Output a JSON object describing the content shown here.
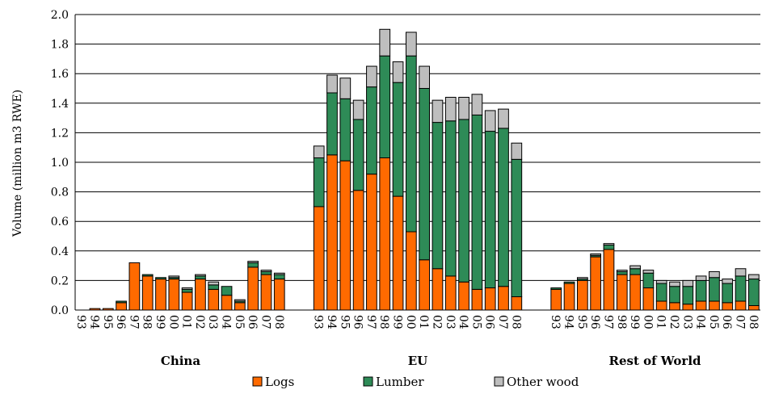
{
  "chart_data": {
    "type": "bar",
    "stacked": true,
    "title": "",
    "ylabel": "Volume (million m3 RWE)",
    "xlabel": "",
    "ylim": [
      0,
      2.0
    ],
    "yticks": [
      "0.0",
      "0.2",
      "0.4",
      "0.6",
      "0.8",
      "1.0",
      "1.2",
      "1.4",
      "1.6",
      "1.8",
      "2.0"
    ],
    "grid": true,
    "legend_position": "bottom",
    "colors": {
      "Logs": "#FF6A00",
      "Lumber": "#2E8B57",
      "Other wood": "#BEBEBE"
    },
    "series_names": [
      "Logs",
      "Lumber",
      "Other wood"
    ],
    "groups": [
      {
        "name": "China",
        "categories": [
          "93",
          "94",
          "95",
          "96",
          "97",
          "98",
          "99",
          "00",
          "01",
          "02",
          "03",
          "04",
          "05",
          "06",
          "07",
          "08"
        ],
        "series": [
          {
            "name": "Logs",
            "values": [
              0,
              0.01,
              0.01,
              0.05,
              0.32,
              0.23,
              0.21,
              0.21,
              0.12,
              0.21,
              0.14,
              0.1,
              0.05,
              0.29,
              0.24,
              0.21
            ]
          },
          {
            "name": "Lumber",
            "values": [
              0,
              0,
              0,
              0.01,
              0,
              0.01,
              0.01,
              0.01,
              0.02,
              0.02,
              0.03,
              0.06,
              0.01,
              0.03,
              0.02,
              0.03
            ]
          },
          {
            "name": "Other wood",
            "values": [
              0,
              0,
              0,
              0,
              0,
              0,
              0,
              0.01,
              0.01,
              0.01,
              0.02,
              0,
              0.01,
              0.01,
              0.01,
              0.01
            ]
          }
        ]
      },
      {
        "name": "EU",
        "categories": [
          "93",
          "94",
          "95",
          "96",
          "97",
          "98",
          "99",
          "00",
          "01",
          "02",
          "03",
          "04",
          "05",
          "06",
          "07",
          "08"
        ],
        "series": [
          {
            "name": "Logs",
            "values": [
              0.7,
              1.05,
              1.01,
              0.81,
              0.92,
              1.03,
              0.77,
              0.53,
              0.34,
              0.28,
              0.23,
              0.19,
              0.14,
              0.15,
              0.16,
              0.09
            ]
          },
          {
            "name": "Lumber",
            "values": [
              0.33,
              0.42,
              0.42,
              0.48,
              0.59,
              0.69,
              0.77,
              1.19,
              1.16,
              0.99,
              1.05,
              1.1,
              1.18,
              1.06,
              1.07,
              0.93
            ]
          },
          {
            "name": "Other wood",
            "values": [
              0.08,
              0.12,
              0.14,
              0.13,
              0.14,
              0.18,
              0.14,
              0.16,
              0.15,
              0.15,
              0.16,
              0.15,
              0.14,
              0.14,
              0.13,
              0.11
            ]
          }
        ]
      },
      {
        "name": "Rest of World",
        "categories": [
          "93",
          "94",
          "95",
          "96",
          "97",
          "98",
          "99",
          "00",
          "01",
          "02",
          "03",
          "04",
          "05",
          "06",
          "07",
          "08"
        ],
        "series": [
          {
            "name": "Logs",
            "values": [
              0.14,
              0.18,
              0.2,
              0.36,
              0.41,
              0.24,
              0.24,
              0.15,
              0.06,
              0.05,
              0.04,
              0.06,
              0.06,
              0.05,
              0.06,
              0.03
            ]
          },
          {
            "name": "Lumber",
            "values": [
              0.01,
              0.01,
              0.01,
              0.01,
              0.03,
              0.02,
              0.04,
              0.1,
              0.12,
              0.11,
              0.12,
              0.14,
              0.16,
              0.13,
              0.17,
              0.18
            ]
          },
          {
            "name": "Other wood",
            "values": [
              0,
              0,
              0.01,
              0.01,
              0.01,
              0.01,
              0.02,
              0.02,
              0.02,
              0.03,
              0.04,
              0.03,
              0.04,
              0.03,
              0.05,
              0.03
            ]
          }
        ]
      }
    ]
  }
}
